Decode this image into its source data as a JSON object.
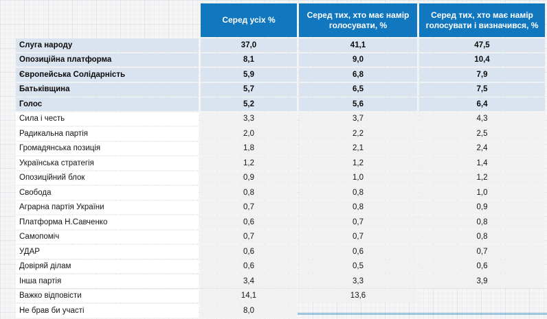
{
  "table": {
    "columns": [
      "Серед усіх %",
      "Серед тих, хто має намір голосувати, %",
      "Серед тих, хто має намір голосувати і визначився, %"
    ],
    "rows": [
      {
        "label": "Слуга народу",
        "values": [
          "37,0",
          "41,1",
          "47,5"
        ],
        "highlight": true
      },
      {
        "label": "Опозиційна платформа",
        "values": [
          "8,1",
          "9,0",
          "10,4"
        ],
        "highlight": true
      },
      {
        "label": "Європейська Солідарність",
        "values": [
          "5,9",
          "6,8",
          "7,9"
        ],
        "highlight": true
      },
      {
        "label": "Батьківщина",
        "values": [
          "5,7",
          "6,5",
          "7,5"
        ],
        "highlight": true
      },
      {
        "label": "Голос",
        "values": [
          "5,2",
          "5,6",
          "6,4"
        ],
        "highlight": true
      },
      {
        "label": "Сила і честь",
        "values": [
          "3,3",
          "3,7",
          "4,3"
        ],
        "highlight": false
      },
      {
        "label": "Радикальна партія",
        "values": [
          "2,0",
          "2,2",
          "2,5"
        ],
        "highlight": false
      },
      {
        "label": "Громадянська позиція",
        "values": [
          "1,8",
          "2,1",
          "2,4"
        ],
        "highlight": false
      },
      {
        "label": "Українська стратегія",
        "values": [
          "1,2",
          "1,2",
          "1,4"
        ],
        "highlight": false
      },
      {
        "label": "Опозиційний блок",
        "values": [
          "0,9",
          "1,0",
          "1,2"
        ],
        "highlight": false
      },
      {
        "label": "Свобода",
        "values": [
          "0,8",
          "0,8",
          "1,0"
        ],
        "highlight": false
      },
      {
        "label": "Аграрна партія України",
        "values": [
          "0,7",
          "0,8",
          "0,9"
        ],
        "highlight": false
      },
      {
        "label": "Платформа Н.Савченко",
        "values": [
          "0,6",
          "0,7",
          "0,8"
        ],
        "highlight": false
      },
      {
        "label": "Самопоміч",
        "values": [
          "0,7",
          "0,7",
          "0,8"
        ],
        "highlight": false
      },
      {
        "label": "УДАР",
        "values": [
          "0,6",
          "0,6",
          "0,7"
        ],
        "highlight": false
      },
      {
        "label": "Довіряй ділам",
        "values": [
          "0,6",
          "0,5",
          "0,6"
        ],
        "highlight": false
      },
      {
        "label": "Інша партія",
        "values": [
          "3,4",
          "3,3",
          "3,9"
        ],
        "highlight": false
      },
      {
        "label": "Важко відповісти",
        "values": [
          "14,1",
          "13,6",
          null
        ],
        "highlight": false
      },
      {
        "label": "Не брав би участі",
        "values": [
          "8,0",
          null,
          null
        ],
        "highlight": false
      }
    ]
  },
  "colors": {
    "header_bg": "#1177bf",
    "highlight_bg": "#dae3f0",
    "cell_bg": "#f1f1f2",
    "label_bg": "#ffffff"
  }
}
